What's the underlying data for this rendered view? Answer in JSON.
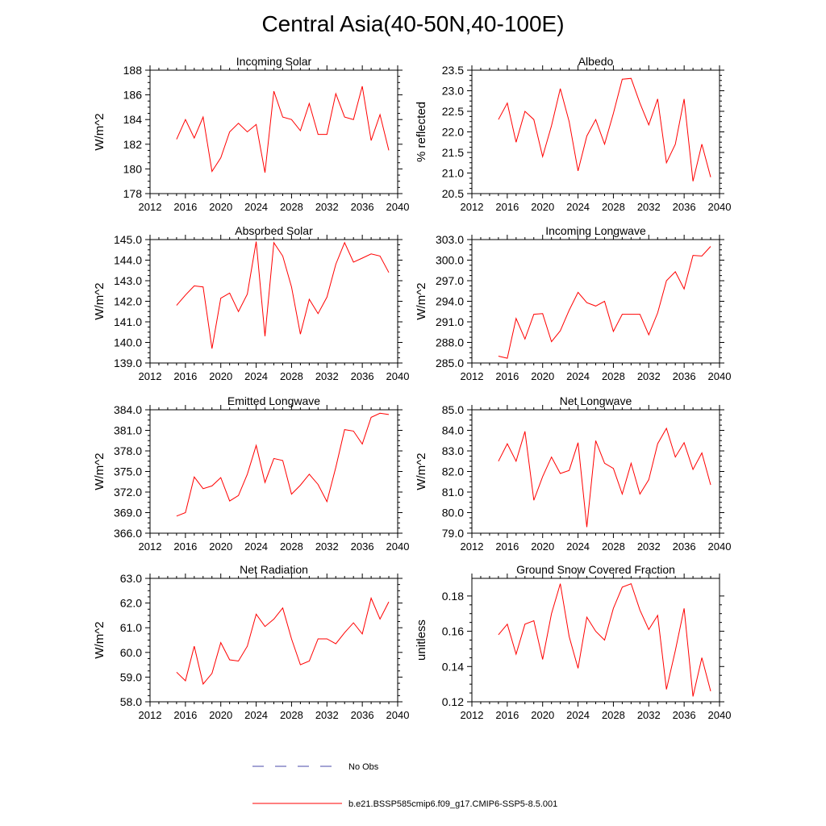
{
  "title": "Central Asia(40-50N,40-100E)",
  "colors": {
    "model": "#ff0000",
    "obs": "#4a4aa8",
    "axis": "#000000"
  },
  "legend": {
    "obs_label": "No Obs",
    "model_label": "b.e21.BSSP585cmip6.f09_g17.CMIP6-SSP5-8.5.001"
  },
  "chart_data": [
    {
      "type": "line",
      "title": "Incoming Solar",
      "ylabel": "W/m^2",
      "xlim": [
        2012,
        2040
      ],
      "ylim": [
        178,
        188
      ],
      "xticks": [
        "2012",
        "2016",
        "2020",
        "2024",
        "2028",
        "2032",
        "2036",
        "2040"
      ],
      "yticks": [
        "178",
        "180",
        "182",
        "184",
        "186",
        "188"
      ],
      "x": [
        2015,
        2016,
        2017,
        2018,
        2019,
        2020,
        2021,
        2022,
        2023,
        2024,
        2025,
        2026,
        2027,
        2028,
        2029,
        2030,
        2031,
        2032,
        2033,
        2034,
        2035,
        2036,
        2037,
        2038,
        2039
      ],
      "series": [
        {
          "name": "b.e21.BSSP585cmip6.f09_g17.CMIP6-SSP5-8.5.001",
          "values": [
            182.4,
            184.0,
            182.5,
            184.2,
            179.8,
            180.9,
            183.0,
            183.7,
            183.0,
            183.6,
            179.7,
            186.3,
            184.2,
            184.0,
            183.1,
            185.3,
            182.8,
            182.8,
            186.1,
            184.2,
            184.0,
            186.7,
            182.3,
            184.4,
            181.5
          ]
        }
      ]
    },
    {
      "type": "line",
      "title": "Albedo",
      "ylabel": "% reflected",
      "xlim": [
        2012,
        2040
      ],
      "ylim": [
        20.5,
        23.5
      ],
      "xticks": [
        "2012",
        "2016",
        "2020",
        "2024",
        "2028",
        "2032",
        "2036",
        "2040"
      ],
      "yticks": [
        "20.5",
        "21.0",
        "21.5",
        "22.0",
        "22.5",
        "23.0",
        "23.5"
      ],
      "x": [
        2015,
        2016,
        2017,
        2018,
        2019,
        2020,
        2021,
        2022,
        2023,
        2024,
        2025,
        2026,
        2027,
        2028,
        2029,
        2030,
        2031,
        2032,
        2033,
        2034,
        2035,
        2036,
        2037,
        2038,
        2039
      ],
      "series": [
        {
          "name": "b.e21.BSSP585cmip6.f09_g17.CMIP6-SSP5-8.5.001",
          "values": [
            22.3,
            22.7,
            21.75,
            22.5,
            22.3,
            21.4,
            22.15,
            23.05,
            22.25,
            21.05,
            21.9,
            22.3,
            21.7,
            22.45,
            23.28,
            23.3,
            22.7,
            22.17,
            22.8,
            21.25,
            21.7,
            22.8,
            20.8,
            21.7,
            20.9
          ]
        }
      ]
    },
    {
      "type": "line",
      "title": "Absorbed Solar",
      "ylabel": "W/m^2",
      "xlim": [
        2012,
        2040
      ],
      "ylim": [
        139.0,
        145.0
      ],
      "xticks": [
        "2012",
        "2016",
        "2020",
        "2024",
        "2028",
        "2032",
        "2036",
        "2040"
      ],
      "yticks": [
        "139.0",
        "140.0",
        "141.0",
        "142.0",
        "143.0",
        "144.0",
        "145.0"
      ],
      "x": [
        2015,
        2016,
        2017,
        2018,
        2019,
        2020,
        2021,
        2022,
        2023,
        2024,
        2025,
        2026,
        2027,
        2028,
        2029,
        2030,
        2031,
        2032,
        2033,
        2034,
        2035,
        2036,
        2037,
        2038,
        2039
      ],
      "series": [
        {
          "name": "b.e21.BSSP585cmip6.f09_g17.CMIP6-SSP5-8.5.001",
          "values": [
            141.8,
            142.3,
            142.75,
            142.7,
            139.7,
            142.15,
            142.4,
            141.5,
            142.35,
            144.9,
            140.3,
            144.85,
            144.2,
            142.7,
            140.4,
            142.1,
            141.4,
            142.2,
            143.8,
            144.85,
            143.9,
            144.1,
            144.3,
            144.2,
            143.4
          ]
        }
      ]
    },
    {
      "type": "line",
      "title": "Incoming Longwave",
      "ylabel": "W/m^2",
      "xlim": [
        2012,
        2040
      ],
      "ylim": [
        285.0,
        303.0
      ],
      "xticks": [
        "2012",
        "2016",
        "2020",
        "2024",
        "2028",
        "2032",
        "2036",
        "2040"
      ],
      "yticks": [
        "285.0",
        "288.0",
        "291.0",
        "294.0",
        "297.0",
        "300.0",
        "303.0"
      ],
      "x": [
        2015,
        2016,
        2017,
        2018,
        2019,
        2020,
        2021,
        2022,
        2023,
        2024,
        2025,
        2026,
        2027,
        2028,
        2029,
        2030,
        2031,
        2032,
        2033,
        2034,
        2035,
        2036,
        2037,
        2038,
        2039
      ],
      "series": [
        {
          "name": "b.e21.BSSP585cmip6.f09_g17.CMIP6-SSP5-8.5.001",
          "values": [
            286.0,
            285.7,
            291.5,
            288.5,
            292.1,
            292.2,
            288.1,
            289.7,
            292.7,
            295.3,
            293.8,
            293.3,
            294.0,
            289.6,
            292.1,
            292.1,
            292.1,
            289.1,
            292.3,
            297.0,
            298.3,
            295.8,
            300.7,
            300.6,
            302.0
          ]
        }
      ]
    },
    {
      "type": "line",
      "title": "Emitted Longwave",
      "ylabel": "W/m^2",
      "xlim": [
        2012,
        2040
      ],
      "ylim": [
        366.0,
        384.0
      ],
      "xticks": [
        "2012",
        "2016",
        "2020",
        "2024",
        "2028",
        "2032",
        "2036",
        "2040"
      ],
      "yticks": [
        "366.0",
        "369.0",
        "372.0",
        "375.0",
        "378.0",
        "381.0",
        "384.0"
      ],
      "x": [
        2015,
        2016,
        2017,
        2018,
        2019,
        2020,
        2021,
        2022,
        2023,
        2024,
        2025,
        2026,
        2027,
        2028,
        2029,
        2030,
        2031,
        2032,
        2033,
        2034,
        2035,
        2036,
        2037,
        2038,
        2039
      ],
      "series": [
        {
          "name": "b.e21.BSSP585cmip6.f09_g17.CMIP6-SSP5-8.5.001",
          "values": [
            368.5,
            369.0,
            374.2,
            372.5,
            372.9,
            374.1,
            370.7,
            371.5,
            374.6,
            378.8,
            373.4,
            376.9,
            376.6,
            371.7,
            373.0,
            374.6,
            373.1,
            370.6,
            375.6,
            381.1,
            380.9,
            379.0,
            382.9,
            383.5,
            383.3
          ]
        }
      ]
    },
    {
      "type": "line",
      "title": "Net Longwave",
      "ylabel": "W/m^2",
      "xlim": [
        2012,
        2040
      ],
      "ylim": [
        79.0,
        85.0
      ],
      "xticks": [
        "2012",
        "2016",
        "2020",
        "2024",
        "2028",
        "2032",
        "2036",
        "2040"
      ],
      "yticks": [
        "79.0",
        "80.0",
        "81.0",
        "82.0",
        "83.0",
        "84.0",
        "85.0"
      ],
      "x": [
        2015,
        2016,
        2017,
        2018,
        2019,
        2020,
        2021,
        2022,
        2023,
        2024,
        2025,
        2026,
        2027,
        2028,
        2029,
        2030,
        2031,
        2032,
        2033,
        2034,
        2035,
        2036,
        2037,
        2038,
        2039
      ],
      "series": [
        {
          "name": "b.e21.BSSP585cmip6.f09_g17.CMIP6-SSP5-8.5.001",
          "values": [
            82.5,
            83.35,
            82.5,
            83.95,
            80.6,
            81.75,
            82.7,
            81.9,
            82.05,
            83.4,
            79.3,
            83.5,
            82.4,
            82.15,
            80.9,
            82.4,
            80.9,
            81.6,
            83.35,
            84.1,
            82.7,
            83.4,
            82.1,
            82.9,
            81.35
          ]
        }
      ]
    },
    {
      "type": "line",
      "title": "Net Radiation",
      "ylabel": "W/m^2",
      "xlim": [
        2012,
        2040
      ],
      "ylim": [
        58.0,
        63.0
      ],
      "xticks": [
        "2012",
        "2016",
        "2020",
        "2024",
        "2028",
        "2032",
        "2036",
        "2040"
      ],
      "yticks": [
        "58.0",
        "59.0",
        "60.0",
        "61.0",
        "62.0",
        "63.0"
      ],
      "x": [
        2015,
        2016,
        2017,
        2018,
        2019,
        2020,
        2021,
        2022,
        2023,
        2024,
        2025,
        2026,
        2027,
        2028,
        2029,
        2030,
        2031,
        2032,
        2033,
        2034,
        2035,
        2036,
        2037,
        2038,
        2039
      ],
      "series": [
        {
          "name": "b.e21.BSSP585cmip6.f09_g17.CMIP6-SSP5-8.5.001",
          "values": [
            59.2,
            58.85,
            60.25,
            58.72,
            59.15,
            60.4,
            59.7,
            59.65,
            60.25,
            61.55,
            61.05,
            61.35,
            61.8,
            60.55,
            59.5,
            59.65,
            60.55,
            60.55,
            60.35,
            60.8,
            61.2,
            60.75,
            62.2,
            61.35,
            62.05
          ]
        }
      ]
    },
    {
      "type": "line",
      "title": "Ground Snow Covered Fraction",
      "ylabel": "unitless",
      "xlim": [
        2012,
        2040
      ],
      "ylim": [
        0.12,
        0.19
      ],
      "xticks": [
        "2012",
        "2016",
        "2020",
        "2024",
        "2028",
        "2032",
        "2036",
        "2040"
      ],
      "yticks": [
        "0.12",
        "0.14",
        "0.16",
        "0.18"
      ],
      "x": [
        2015,
        2016,
        2017,
        2018,
        2019,
        2020,
        2021,
        2022,
        2023,
        2024,
        2025,
        2026,
        2027,
        2028,
        2029,
        2030,
        2031,
        2032,
        2033,
        2034,
        2035,
        2036,
        2037,
        2038,
        2039
      ],
      "series": [
        {
          "name": "b.e21.BSSP585cmip6.f09_g17.CMIP6-SSP5-8.5.001",
          "values": [
            0.158,
            0.164,
            0.147,
            0.164,
            0.166,
            0.144,
            0.17,
            0.187,
            0.157,
            0.139,
            0.168,
            0.16,
            0.155,
            0.173,
            0.185,
            0.187,
            0.172,
            0.161,
            0.169,
            0.127,
            0.149,
            0.173,
            0.123,
            0.145,
            0.126
          ]
        }
      ]
    }
  ]
}
